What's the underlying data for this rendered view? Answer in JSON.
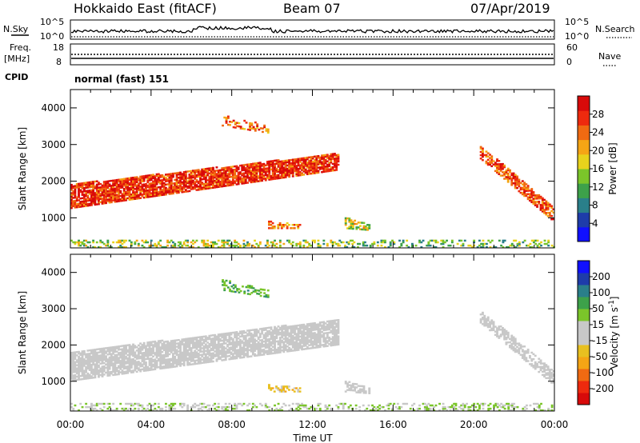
{
  "header": {
    "station": "Hokkaido East (fitACF)",
    "beam": "Beam 07",
    "date": "07/Apr/2019"
  },
  "top_panels": {
    "nsky_label": "N.Sky",
    "nsearch_label": "N.Search",
    "nsky_ticks": [
      "10^5",
      "10^0"
    ],
    "nsearch_ticks": [
      "10^5",
      "10^0"
    ],
    "freq_label": "Freq.",
    "freq_unit": "[MHz]",
    "freq_ticks": [
      "18",
      "8"
    ],
    "nave_label": "Nave",
    "nave_ticks": [
      "60",
      "0"
    ],
    "cpid_label": "CPID",
    "cpid_text": "normal (fast) 151"
  },
  "chart_data": [
    {
      "type": "heatmap",
      "panel": "power",
      "ylabel": "Slant Range [km]",
      "xlabel": "",
      "y_ticks": [
        "4000",
        "3000",
        "2000",
        "1000"
      ],
      "ylim": [
        180,
        4500
      ],
      "xlim": [
        0,
        24
      ],
      "colorbar_label": "Power [dB]",
      "colorbar_ticks": [
        "28",
        "24",
        "20",
        "16",
        "12",
        "8",
        "4"
      ],
      "colorbar_range": [
        0,
        30
      ],
      "colorbar_colors": [
        "#1010ff",
        "#1e3caa",
        "#2a7f8a",
        "#3da14a",
        "#7bc52a",
        "#e8d21c",
        "#f5a515",
        "#f06a12",
        "#ee2a0e",
        "#d80a0a"
      ],
      "regions": [
        {
          "t": [
            0,
            13.3
          ],
          "r_start": [
            1250,
            2300
          ],
          "r_width": [
            650,
            450
          ],
          "level": 26,
          "density": 0.85
        },
        {
          "t": [
            0,
            13.3
          ],
          "r_start": [
            180,
            180
          ],
          "r_width": [
            200,
            200
          ],
          "level": 14,
          "density": 0.35
        },
        {
          "t": [
            13.3,
            24
          ],
          "r_start": [
            180,
            180
          ],
          "r_width": [
            200,
            200
          ],
          "level": 12,
          "density": 0.3
        },
        {
          "t": [
            7.5,
            9.8
          ],
          "r_start": [
            3500,
            3300
          ],
          "r_width": [
            300,
            200
          ],
          "level": 22,
          "density": 0.4
        },
        {
          "t": [
            9.8,
            11.4
          ],
          "r_start": [
            700,
            700
          ],
          "r_width": [
            200,
            100
          ],
          "level": 22,
          "density": 0.5
        },
        {
          "t": [
            13.6,
            14.8
          ],
          "r_start": [
            700,
            650
          ],
          "r_width": [
            300,
            150
          ],
          "level": 16,
          "density": 0.6
        },
        {
          "t": [
            20.3,
            23.9
          ],
          "r_start": [
            2600,
            900
          ],
          "r_width": [
            350,
            400
          ],
          "level": 24,
          "density": 0.7
        }
      ]
    },
    {
      "type": "heatmap",
      "panel": "velocity",
      "ylabel": "Slant Range [km]",
      "xlabel": "Time UT",
      "x_ticks": [
        "00:00",
        "04:00",
        "08:00",
        "12:00",
        "16:00",
        "20:00",
        "00:00"
      ],
      "y_ticks": [
        "4000",
        "3000",
        "2000",
        "1000"
      ],
      "ylim": [
        180,
        4500
      ],
      "xlim": [
        0,
        24
      ],
      "colorbar_label": "Velocity [m s^-1]",
      "colorbar_ticks": [
        "200",
        "100",
        "50",
        "15",
        "-15",
        "-50",
        "-100",
        "-200"
      ],
      "colorbar_range": [
        -250,
        250
      ],
      "colorbar_colors": [
        "#d80a0a",
        "#ee2a0e",
        "#f06a12",
        "#f5a515",
        "#e8c020",
        "#c8c8c8",
        "#c8c8c8",
        "#7bc52a",
        "#3da14a",
        "#2a7f8a",
        "#1e3caa",
        "#1010ff"
      ],
      "regions": [
        {
          "t": [
            0,
            13.3
          ],
          "r_start": [
            1000,
            2000
          ],
          "r_width": [
            800,
            700
          ],
          "level": 0,
          "density": 0.8
        },
        {
          "t": [
            0,
            13.3
          ],
          "r_start": [
            180,
            180
          ],
          "r_width": [
            200,
            200
          ],
          "level": 30,
          "density": 0.3
        },
        {
          "t": [
            13.3,
            24
          ],
          "r_start": [
            180,
            180
          ],
          "r_width": [
            200,
            200
          ],
          "level": 40,
          "density": 0.3
        },
        {
          "t": [
            7.5,
            9.8
          ],
          "r_start": [
            3500,
            3300
          ],
          "r_width": [
            300,
            200
          ],
          "level": 90,
          "density": 0.4
        },
        {
          "t": [
            9.8,
            11.4
          ],
          "r_start": [
            700,
            700
          ],
          "r_width": [
            200,
            100
          ],
          "level": -60,
          "density": 0.5
        },
        {
          "t": [
            13.6,
            14.8
          ],
          "r_start": [
            700,
            650
          ],
          "r_width": [
            300,
            150
          ],
          "level": 0,
          "density": 0.6
        },
        {
          "t": [
            20.3,
            23.9
          ],
          "r_start": [
            2600,
            900
          ],
          "r_width": [
            350,
            400
          ],
          "level": 0,
          "density": 0.6
        }
      ]
    }
  ]
}
